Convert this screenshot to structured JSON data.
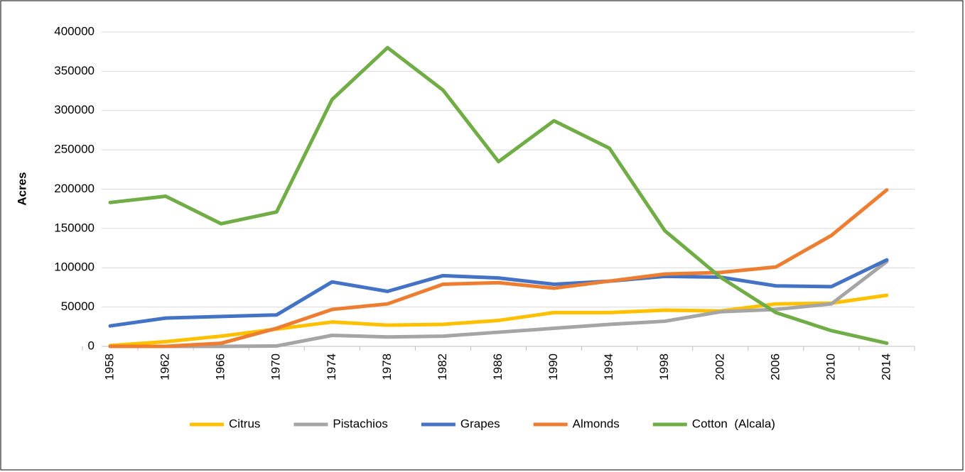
{
  "chart_data": {
    "type": "line",
    "y_label": "Acres",
    "categories": [
      "1958",
      "1962",
      "1966",
      "1970",
      "1974",
      "1978",
      "1982",
      "1986",
      "1990",
      "1994",
      "1998",
      "2002",
      "2006",
      "2010",
      "2014"
    ],
    "series": [
      {
        "name": "Citrus",
        "color": "#ffc000",
        "values": [
          1000,
          6000,
          13000,
          22000,
          31000,
          27000,
          28000,
          33000,
          43000,
          43000,
          46000,
          45000,
          54000,
          55000,
          65000
        ]
      },
      {
        "name": "Pistachios",
        "color": "#a5a5a5",
        "values": [
          0,
          0,
          0,
          500,
          14000,
          12000,
          13000,
          18000,
          23000,
          28000,
          32000,
          44000,
          47000,
          54000,
          108000
        ]
      },
      {
        "name": "Grapes",
        "color": "#4472c4",
        "values": [
          26000,
          36000,
          38000,
          40000,
          82000,
          70000,
          90000,
          87000,
          79000,
          83000,
          89000,
          88000,
          77000,
          76000,
          110000
        ]
      },
      {
        "name": "Almonds",
        "color": "#ed7d31",
        "values": [
          0,
          0,
          4000,
          23000,
          47000,
          54000,
          79000,
          81000,
          74000,
          83000,
          92000,
          94000,
          101000,
          141000,
          199000
        ]
      },
      {
        "name": "Cotton  (Alcala)",
        "color": "#70ad47",
        "values": [
          183000,
          191000,
          156000,
          171000,
          314000,
          380000,
          326000,
          235000,
          287000,
          252000,
          147000,
          88000,
          43000,
          20000,
          4000
        ]
      }
    ],
    "ylim": [
      0,
      400000
    ],
    "yticks": [
      0,
      50000,
      100000,
      150000,
      200000,
      250000,
      300000,
      350000,
      400000
    ],
    "grid": true,
    "legend": "bottom"
  }
}
